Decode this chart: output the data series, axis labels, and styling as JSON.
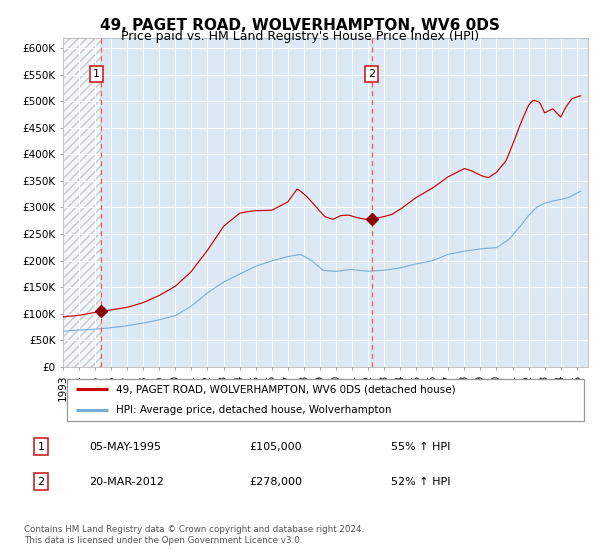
{
  "title": "49, PAGET ROAD, WOLVERHAMPTON, WV6 0DS",
  "subtitle": "Price paid vs. HM Land Registry's House Price Index (HPI)",
  "plot_bg_color": "#dce9f5",
  "red_line_color": "#cc0000",
  "blue_line_color": "#7aadd4",
  "vline_color": "#ff5555",
  "marker_color": "#880000",
  "sale1_date": 1995.35,
  "sale1_price": 105000,
  "sale1_label": "1",
  "sale1_date_str": "05-MAY-1995",
  "sale1_hpi": "55% ↑ HPI",
  "sale2_date": 2012.22,
  "sale2_price": 278000,
  "sale2_label": "2",
  "sale2_date_str": "20-MAR-2012",
  "sale2_hpi": "52% ↑ HPI",
  "ylim": [
    0,
    620000
  ],
  "xlim_start": 1993.0,
  "xlim_end": 2025.7,
  "legend_line1": "49, PAGET ROAD, WOLVERHAMPTON, WV6 0DS (detached house)",
  "legend_line2": "HPI: Average price, detached house, Wolverhampton",
  "footer": "Contains HM Land Registry data © Crown copyright and database right 2024.\nThis data is licensed under the Open Government Licence v3.0.",
  "title_fontsize": 11,
  "subtitle_fontsize": 9,
  "tick_fontsize": 7.5,
  "yticks": [
    0,
    50000,
    100000,
    150000,
    200000,
    250000,
    300000,
    350000,
    400000,
    450000,
    500000,
    550000,
    600000
  ],
  "ytick_labels": [
    "£0",
    "£50K",
    "£100K",
    "£150K",
    "£200K",
    "£250K",
    "£300K",
    "£350K",
    "£400K",
    "£450K",
    "£500K",
    "£550K",
    "£600K"
  ],
  "xtick_years": [
    1993,
    1994,
    1995,
    1996,
    1997,
    1998,
    1999,
    2000,
    2001,
    2002,
    2003,
    2004,
    2005,
    2006,
    2007,
    2008,
    2009,
    2010,
    2011,
    2012,
    2013,
    2014,
    2015,
    2016,
    2017,
    2018,
    2019,
    2020,
    2021,
    2022,
    2023,
    2024,
    2025
  ],
  "blue_anchors_x": [
    1993.0,
    1994.0,
    1995.0,
    1996.0,
    1997.0,
    1998.0,
    1999.0,
    2000.0,
    2001.0,
    2002.0,
    2003.0,
    2004.0,
    2005.0,
    2006.0,
    2007.0,
    2007.8,
    2008.5,
    2009.2,
    2010.0,
    2010.5,
    2011.0,
    2012.0,
    2013.0,
    2014.0,
    2015.0,
    2016.0,
    2017.0,
    2018.0,
    2019.0,
    2020.0,
    2020.8,
    2021.5,
    2022.0,
    2022.5,
    2023.0,
    2023.5,
    2024.0,
    2024.5,
    2025.2
  ],
  "blue_anchors_y": [
    67000,
    69000,
    71000,
    74000,
    78000,
    83000,
    89000,
    97000,
    115000,
    140000,
    160000,
    175000,
    190000,
    200000,
    208000,
    212000,
    200000,
    182000,
    180000,
    182000,
    183000,
    180000,
    182000,
    186000,
    194000,
    200000,
    212000,
    218000,
    222000,
    224000,
    240000,
    265000,
    285000,
    300000,
    308000,
    312000,
    315000,
    318000,
    330000
  ],
  "red_anchors_x": [
    1993.0,
    1994.0,
    1995.35,
    1996.0,
    1997.0,
    1998.0,
    1999.0,
    2000.0,
    2001.0,
    2002.0,
    2003.0,
    2004.0,
    2005.0,
    2006.0,
    2007.0,
    2007.6,
    2008.2,
    2008.8,
    2009.3,
    2009.8,
    2010.3,
    2010.8,
    2011.2,
    2011.7,
    2012.22,
    2012.8,
    2013.5,
    2014.0,
    2015.0,
    2016.0,
    2017.0,
    2018.0,
    2018.5,
    2019.0,
    2019.5,
    2020.0,
    2020.6,
    2021.0,
    2021.5,
    2022.0,
    2022.3,
    2022.7,
    2023.0,
    2023.5,
    2024.0,
    2024.3,
    2024.7,
    2025.2
  ],
  "red_anchors_y": [
    94000,
    97000,
    105000,
    108000,
    113000,
    122000,
    135000,
    152000,
    180000,
    220000,
    265000,
    290000,
    295000,
    295000,
    310000,
    335000,
    320000,
    300000,
    283000,
    278000,
    285000,
    286000,
    282000,
    279000,
    278000,
    282000,
    288000,
    298000,
    320000,
    338000,
    360000,
    375000,
    370000,
    362000,
    358000,
    368000,
    390000,
    420000,
    460000,
    495000,
    505000,
    500000,
    480000,
    488000,
    472000,
    490000,
    507000,
    512000
  ]
}
